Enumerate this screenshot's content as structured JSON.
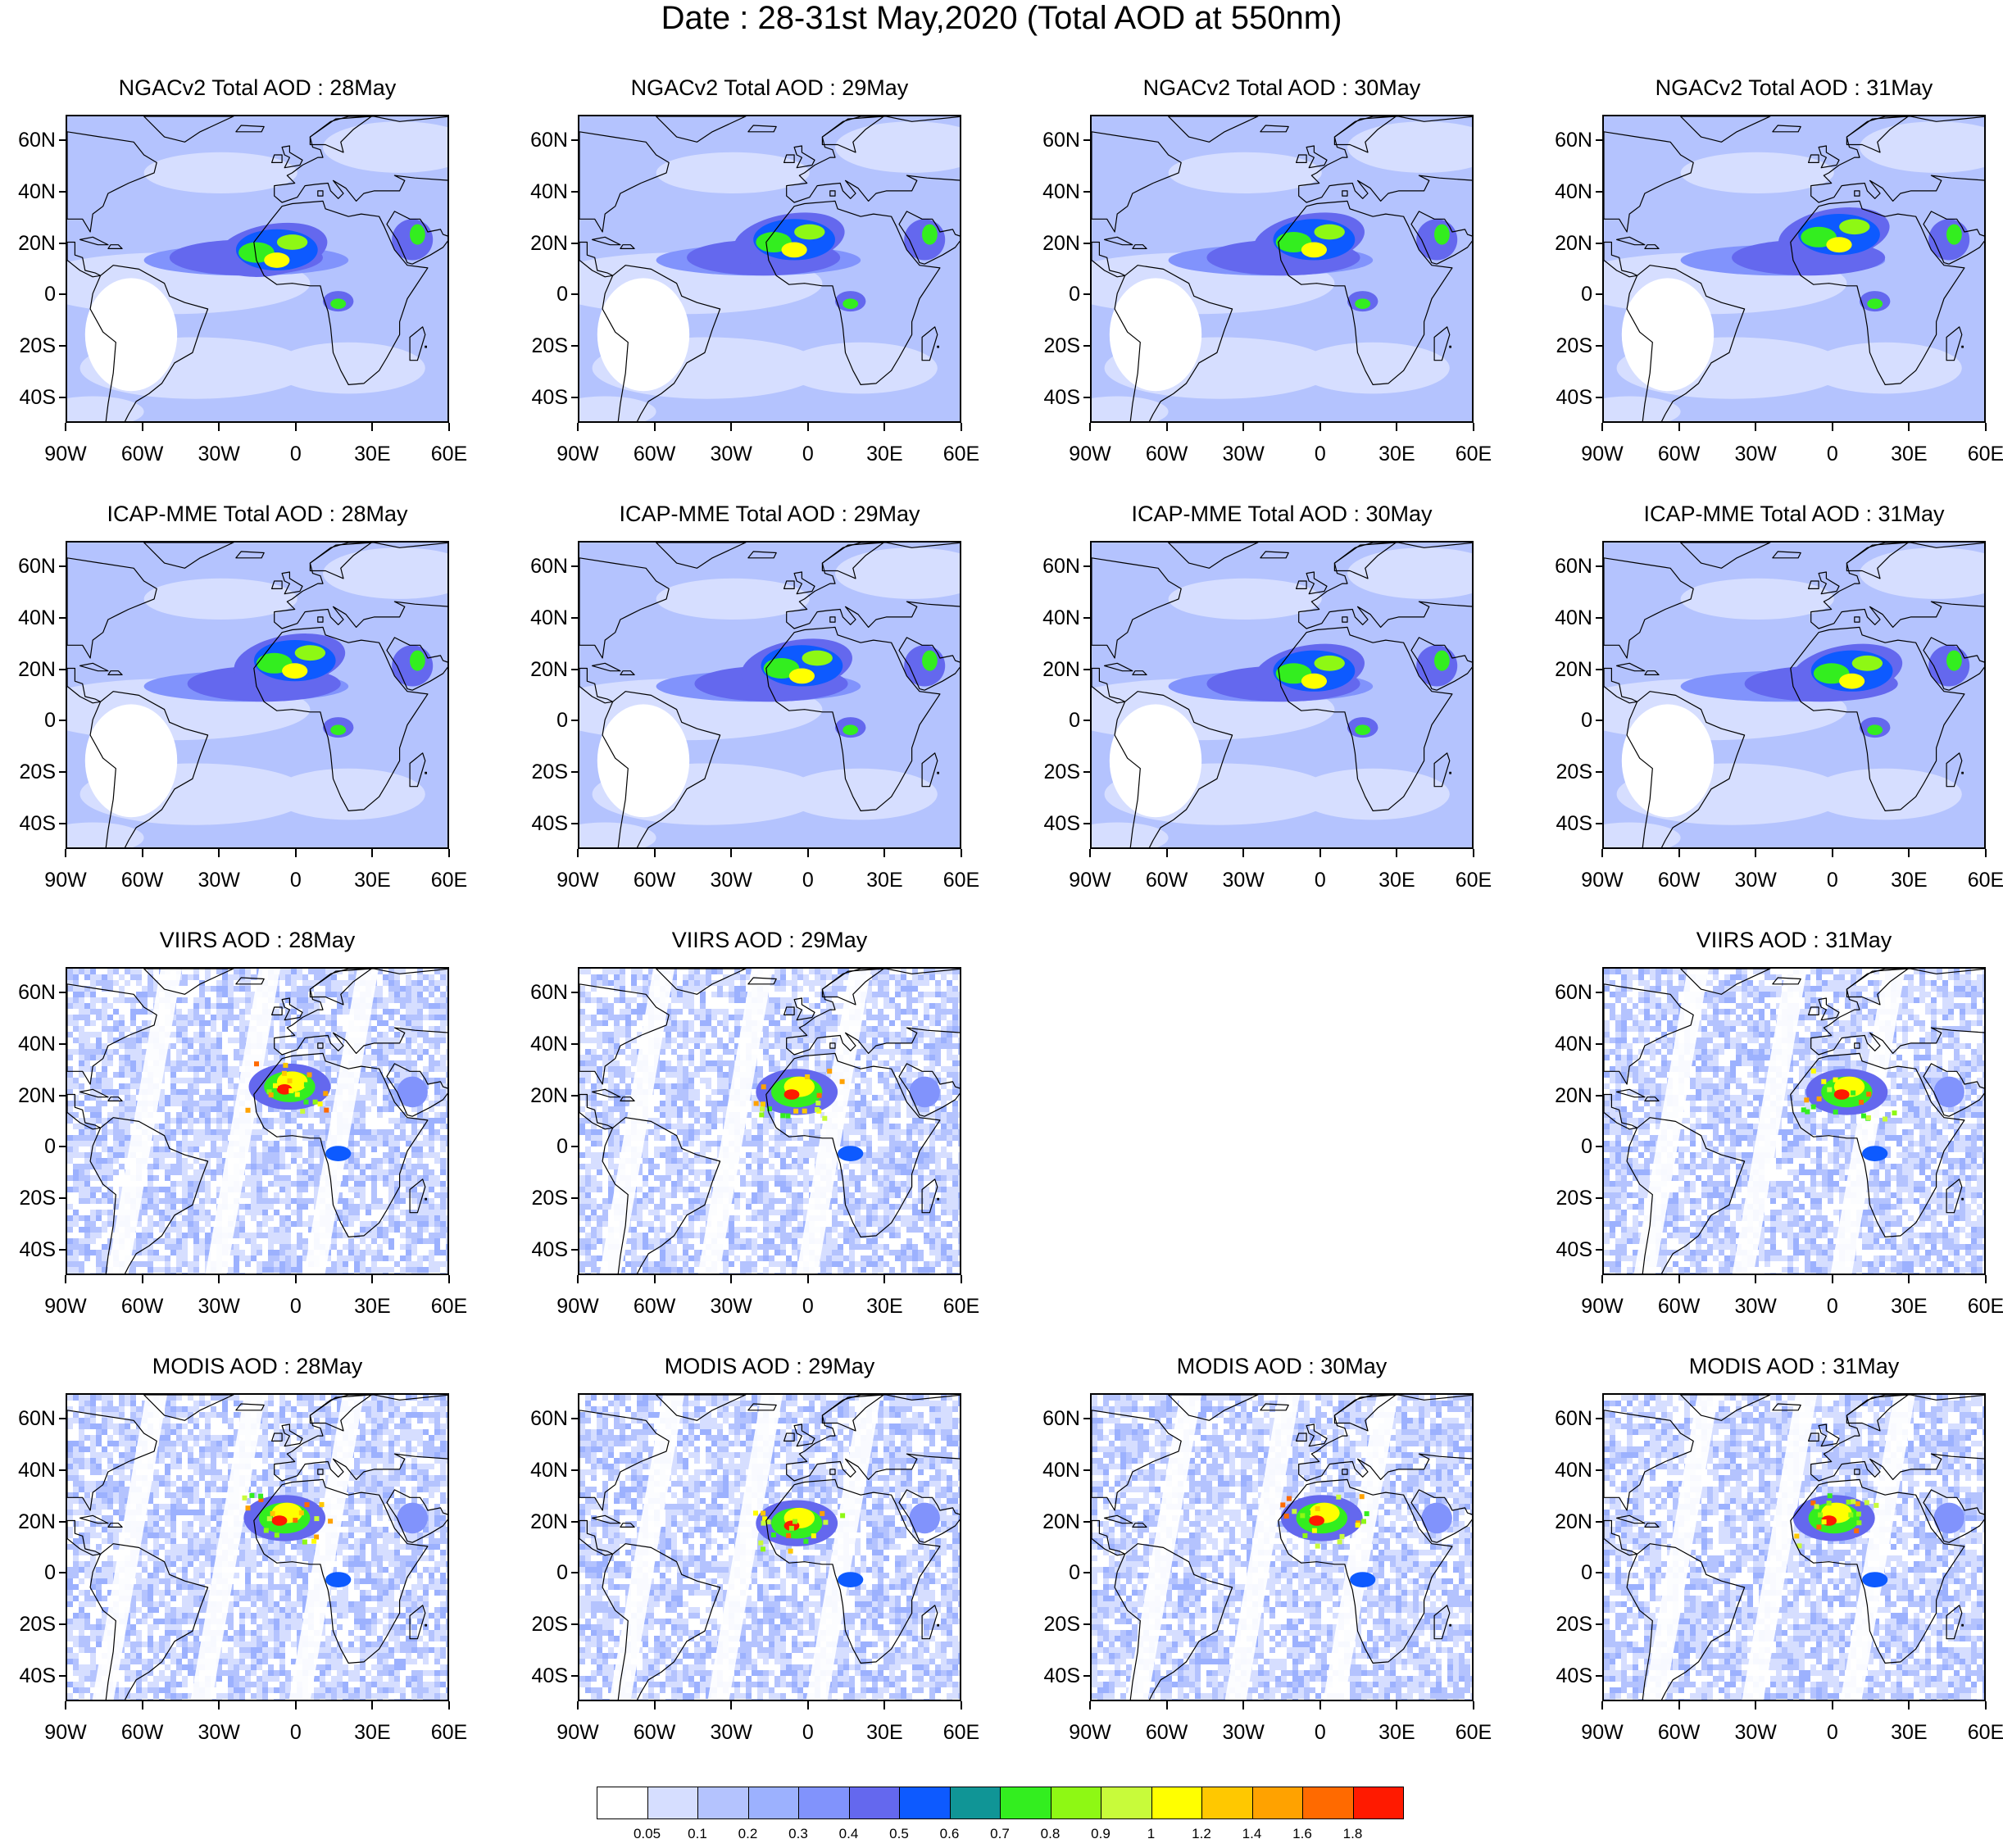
{
  "title": "Date : 28-31st May,2020 (Total AOD at 550nm)",
  "lat_labels": [
    "60N",
    "40N",
    "20N",
    "0",
    "20S",
    "40S"
  ],
  "lon_labels": [
    "90W",
    "60W",
    "30W",
    "0",
    "30E",
    "60E"
  ],
  "map_extent": {
    "lon": [
      -90,
      60
    ],
    "lat": [
      -50,
      70
    ]
  },
  "rows": [
    {
      "product": "NGACv2",
      "panels": [
        {
          "title": "NGACv2 Total AOD : 28May",
          "present": true,
          "style": "model",
          "plume_lon": -10,
          "plume_lat": 18
        },
        {
          "title": "NGACv2 Total AOD : 29May",
          "present": true,
          "style": "model",
          "plume_lon": -8,
          "plume_lat": 22
        },
        {
          "title": "NGACv2 Total AOD : 30May",
          "present": true,
          "style": "model",
          "plume_lon": -5,
          "plume_lat": 22
        },
        {
          "title": "NGACv2 Total AOD : 31May",
          "present": true,
          "style": "model",
          "plume_lon": 0,
          "plume_lat": 24
        }
      ]
    },
    {
      "product": "ICAP-MME",
      "panels": [
        {
          "title": "ICAP-MME Total AOD : 28May",
          "present": true,
          "style": "model",
          "plume_lon": -3,
          "plume_lat": 24
        },
        {
          "title": "ICAP-MME Total AOD : 29May",
          "present": true,
          "style": "model",
          "plume_lon": -5,
          "plume_lat": 22
        },
        {
          "title": "ICAP-MME Total AOD : 30May",
          "present": true,
          "style": "model",
          "plume_lon": -5,
          "plume_lat": 20
        },
        {
          "title": "ICAP-MME Total AOD : 31May",
          "present": true,
          "style": "model",
          "plume_lon": 5,
          "plume_lat": 20
        }
      ]
    },
    {
      "product": "VIIRS",
      "panels": [
        {
          "title": "VIIRS AOD : 28May",
          "present": true,
          "style": "satellite",
          "plume_lon": -3,
          "plume_lat": 24
        },
        {
          "title": "VIIRS AOD : 29May",
          "present": true,
          "style": "satellite",
          "plume_lon": -5,
          "plume_lat": 22
        },
        {
          "title": "",
          "present": false
        },
        {
          "title": "VIIRS AOD : 31May",
          "present": true,
          "style": "satellite",
          "plume_lon": 5,
          "plume_lat": 22
        }
      ]
    },
    {
      "product": "MODIS",
      "panels": [
        {
          "title": "MODIS AOD : 28May",
          "present": true,
          "style": "satellite",
          "plume_lon": -5,
          "plume_lat": 22
        },
        {
          "title": "MODIS AOD : 29May",
          "present": true,
          "style": "satellite",
          "plume_lon": -5,
          "plume_lat": 20
        },
        {
          "title": "MODIS AOD : 30May",
          "present": true,
          "style": "satellite",
          "plume_lon": 0,
          "plume_lat": 22
        },
        {
          "title": "MODIS AOD : 31May",
          "present": true,
          "style": "satellite",
          "plume_lon": 0,
          "plume_lat": 22
        }
      ]
    }
  ],
  "colorbar": {
    "labels": [
      "0.05",
      "0.1",
      "0.2",
      "0.3",
      "0.4",
      "0.5",
      "0.6",
      "0.7",
      "0.8",
      "0.9",
      "1",
      "1.2",
      "1.4",
      "1.6",
      "1.8"
    ],
    "colors": [
      "#ffffff",
      "#d6deff",
      "#b4c3fe",
      "#9cb1fe",
      "#8193fc",
      "#6468ee",
      "#0d5aff",
      "#109596",
      "#33ee1f",
      "#8ef814",
      "#c8fb3a",
      "#ffff00",
      "#ffc800",
      "#ffa200",
      "#ff6a00",
      "#ff1a00"
    ]
  }
}
